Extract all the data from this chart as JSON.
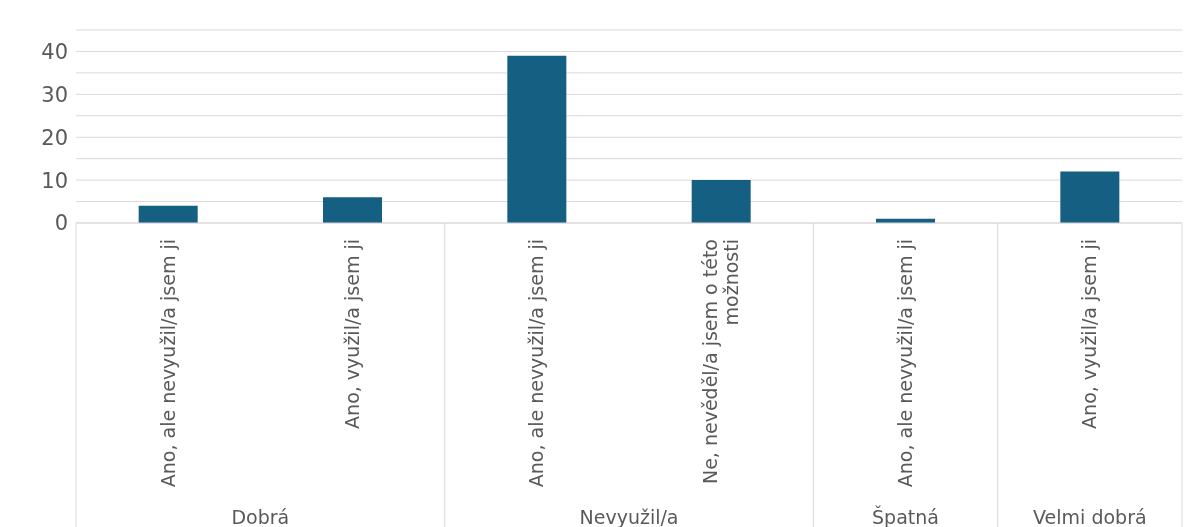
{
  "chart_data": {
    "type": "bar",
    "categories": [
      "Ano, ale nevyužil/a jsem ji",
      "Ano, využil/a jsem ji",
      "Ano, ale nevyužil/a jsem ji",
      "Ne, nevěděl/a jsem o této možnosti",
      "Ano, ale nevyužil/a jsem ji",
      "Ano, využil/a jsem ji"
    ],
    "values": [
      4,
      6,
      39,
      10,
      1,
      12
    ],
    "color": "#155f82",
    "ylim": [
      0,
      45
    ],
    "yticks": [
      0,
      {
        "value": 5,
        "label": null
      },
      10,
      {
        "value": 15,
        "label": null
      },
      20,
      {
        "value": 25,
        "label": null
      },
      30,
      {
        "value": 35,
        "label": null
      },
      40,
      {
        "value": 45,
        "label": null
      }
    ],
    "grid": "y",
    "annotations": [
      "Dobrá",
      "Nevyužil/a",
      "Špatná",
      "Velmi dobrá"
    ]
  }
}
